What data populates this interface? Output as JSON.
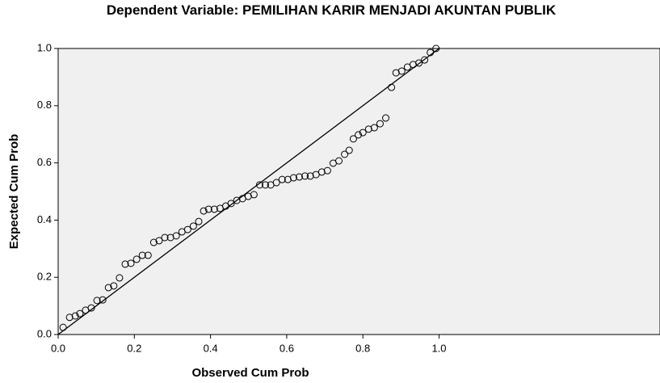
{
  "chart_data": {
    "type": "scatter",
    "title": "Dependent Variable: PEMILIHAN KARIR MENJADI AKUNTAN PUBLIK",
    "x_label": "Observed Cum Prob",
    "y_label": "Expected Cum Prob",
    "reference_line": true,
    "color": "#000000",
    "background": "#f0f0f0",
    "xlim": [
      0,
      1.58
    ],
    "ylim": [
      0,
      1
    ],
    "xticks": [
      {
        "value": 0,
        "label": "0.0"
      },
      0.2,
      0.4,
      0.6,
      0.8,
      {
        "value": 1,
        "label": "1.0"
      }
    ],
    "yticks": [
      {
        "value": 0,
        "label": "0.0"
      },
      0.2,
      0.4,
      0.6,
      0.8,
      {
        "value": 1,
        "label": "1.0"
      }
    ],
    "x": [
      0.013,
      0.03,
      0.045,
      0.057,
      0.072,
      0.087,
      0.102,
      0.117,
      0.132,
      0.146,
      0.161,
      0.176,
      0.191,
      0.206,
      0.221,
      0.236,
      0.251,
      0.265,
      0.28,
      0.295,
      0.31,
      0.325,
      0.34,
      0.355,
      0.369,
      0.382,
      0.395,
      0.41,
      0.425,
      0.44,
      0.454,
      0.469,
      0.484,
      0.499,
      0.514,
      0.529,
      0.544,
      0.558,
      0.573,
      0.588,
      0.603,
      0.618,
      0.633,
      0.648,
      0.662,
      0.677,
      0.692,
      0.707,
      0.722,
      0.737,
      0.752,
      0.764,
      0.775,
      0.788,
      0.8,
      0.815,
      0.83,
      0.845,
      0.86,
      0.875,
      0.887,
      0.902,
      0.917,
      0.932,
      0.947,
      0.962,
      0.977,
      0.992
    ],
    "values": [
      0.025,
      0.06,
      0.065,
      0.073,
      0.085,
      0.093,
      0.119,
      0.121,
      0.164,
      0.17,
      0.198,
      0.246,
      0.249,
      0.263,
      0.277,
      0.277,
      0.322,
      0.328,
      0.339,
      0.339,
      0.345,
      0.359,
      0.367,
      0.379,
      0.395,
      0.432,
      0.438,
      0.438,
      0.441,
      0.449,
      0.458,
      0.469,
      0.475,
      0.483,
      0.489,
      0.523,
      0.523,
      0.523,
      0.531,
      0.542,
      0.542,
      0.548,
      0.551,
      0.554,
      0.554,
      0.559,
      0.568,
      0.573,
      0.599,
      0.607,
      0.63,
      0.644,
      0.684,
      0.698,
      0.706,
      0.718,
      0.723,
      0.737,
      0.757,
      0.864,
      0.915,
      0.921,
      0.935,
      0.944,
      0.949,
      0.96,
      0.986,
      1.0
    ]
  }
}
